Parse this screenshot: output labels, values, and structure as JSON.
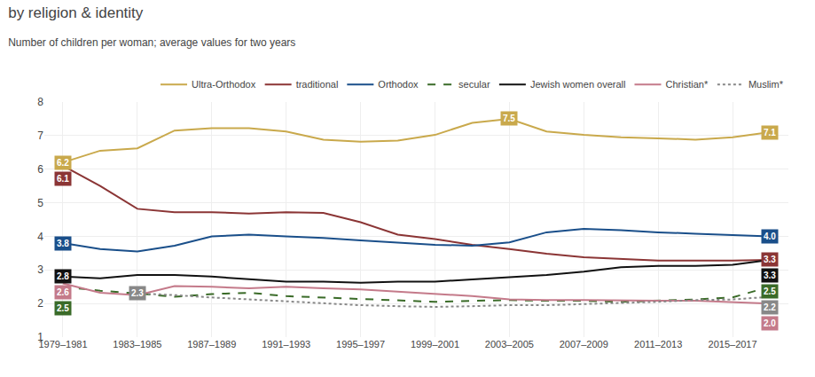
{
  "chart_data": {
    "type": "line",
    "title": "by religion & identity",
    "subtitle": "Number of children per woman; average values for two years",
    "categories": [
      "1979–1981",
      null,
      "1983–1985",
      null,
      "1987–1989",
      null,
      "1991–1993",
      null,
      "1995–1997",
      null,
      "1999–2001",
      null,
      "2003–2005",
      null,
      "2007–2009",
      null,
      "2011–2013",
      null,
      "2015–2017",
      null
    ],
    "series": [
      {
        "name": "Ultra-Orthodox",
        "color": "#c9a94c",
        "line_style": "solid",
        "values": [
          6.2,
          6.55,
          6.62,
          7.15,
          7.22,
          7.22,
          7.12,
          6.88,
          6.82,
          6.85,
          7.02,
          7.38,
          7.5,
          7.12,
          7.02,
          6.95,
          6.92,
          6.88,
          6.95,
          7.1
        ],
        "value_labels": [
          "6.2",
          null,
          null,
          null,
          null,
          null,
          null,
          null,
          null,
          null,
          null,
          null,
          "7.5",
          null,
          null,
          null,
          null,
          null,
          null,
          "7.1"
        ]
      },
      {
        "name": "traditional",
        "color": "#8b3535",
        "line_style": "solid",
        "values": [
          6.1,
          5.5,
          4.82,
          4.72,
          4.72,
          4.68,
          4.72,
          4.7,
          4.42,
          4.05,
          3.92,
          3.75,
          3.62,
          3.48,
          3.38,
          3.32,
          3.28,
          3.28,
          3.28,
          3.3
        ],
        "value_labels": [
          "6.1",
          null,
          null,
          null,
          null,
          null,
          null,
          null,
          null,
          null,
          null,
          null,
          null,
          null,
          null,
          null,
          null,
          null,
          null,
          "3.3"
        ]
      },
      {
        "name": "Orthodox",
        "color": "#1a4f8a",
        "line_style": "solid",
        "values": [
          3.8,
          3.62,
          3.55,
          3.72,
          4.0,
          4.05,
          4.0,
          3.95,
          3.88,
          3.82,
          3.75,
          3.72,
          3.82,
          4.12,
          4.22,
          4.18,
          4.12,
          4.08,
          4.04,
          4.0
        ],
        "value_labels": [
          "3.8",
          null,
          null,
          null,
          null,
          null,
          null,
          null,
          null,
          null,
          null,
          null,
          null,
          null,
          null,
          null,
          null,
          null,
          null,
          "4.0"
        ]
      },
      {
        "name": "secular",
        "color": "#3a6b28",
        "line_style": "dashed",
        "values": [
          2.5,
          2.38,
          2.3,
          2.2,
          2.28,
          2.32,
          2.22,
          2.18,
          2.12,
          2.08,
          2.05,
          2.08,
          2.1,
          2.08,
          2.08,
          2.05,
          2.08,
          2.12,
          2.18,
          2.5
        ],
        "value_labels": [
          "2.5",
          null,
          null,
          null,
          null,
          null,
          null,
          null,
          null,
          null,
          null,
          null,
          null,
          null,
          null,
          null,
          null,
          null,
          null,
          "2.5"
        ]
      },
      {
        "name": "Jewish women overall",
        "color": "#111111",
        "line_style": "solid",
        "values": [
          2.8,
          2.75,
          2.85,
          2.85,
          2.8,
          2.72,
          2.65,
          2.65,
          2.62,
          2.65,
          2.65,
          2.72,
          2.78,
          2.85,
          2.95,
          3.08,
          3.12,
          3.12,
          3.15,
          3.3
        ],
        "value_labels": [
          "2.8",
          null,
          null,
          null,
          null,
          null,
          null,
          null,
          null,
          null,
          null,
          null,
          null,
          null,
          null,
          null,
          null,
          null,
          null,
          "3.3"
        ]
      },
      {
        "name": "Christian*",
        "color": "#c47a8a",
        "line_style": "solid",
        "values": [
          2.6,
          2.32,
          2.25,
          2.52,
          2.5,
          2.45,
          2.5,
          2.45,
          2.42,
          2.35,
          2.3,
          2.22,
          2.12,
          2.1,
          2.1,
          2.08,
          2.08,
          2.08,
          2.05,
          2.0
        ],
        "value_labels": [
          "2.6",
          null,
          null,
          null,
          null,
          null,
          null,
          null,
          null,
          null,
          null,
          null,
          null,
          null,
          null,
          null,
          null,
          null,
          null,
          "2.0"
        ]
      },
      {
        "name": "Muslim*",
        "color": "#888888",
        "line_style": "dotted",
        "values": [
          null,
          null,
          2.3,
          2.25,
          2.18,
          2.12,
          2.05,
          2.0,
          1.95,
          1.92,
          1.9,
          1.92,
          1.95,
          1.95,
          1.98,
          2.0,
          2.05,
          2.1,
          2.12,
          2.2
        ],
        "value_labels": [
          null,
          null,
          "2.3",
          null,
          null,
          null,
          null,
          null,
          null,
          null,
          null,
          null,
          null,
          null,
          null,
          null,
          null,
          null,
          null,
          "2.2"
        ]
      }
    ],
    "ylim": [
      1,
      8
    ],
    "yticks": [
      1,
      2,
      3,
      4,
      5,
      6,
      7,
      8
    ],
    "grid": true,
    "legend": "upper right"
  }
}
